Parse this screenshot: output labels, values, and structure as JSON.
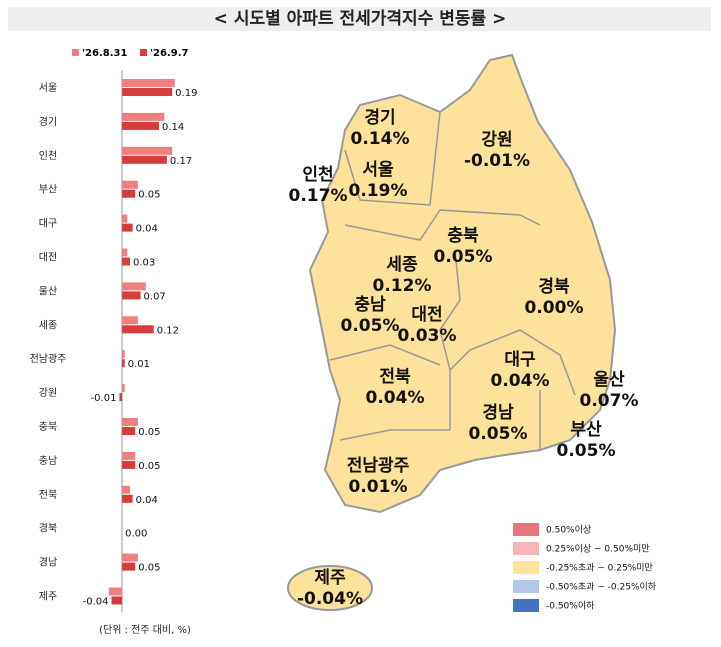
{
  "chart_data": {
    "type": "bar",
    "orientation": "horizontal",
    "title": "< 시도별 아파트 전세가격지수 변동률 >",
    "note": "(단위 : 전주 대비, %)",
    "categories": [
      "서울",
      "경기",
      "인천",
      "부산",
      "대구",
      "대전",
      "울산",
      "세종",
      "전남광주",
      "강원",
      "충북",
      "충남",
      "전북",
      "경북",
      "경남",
      "제주"
    ],
    "xlim": [
      -0.08,
      0.25
    ],
    "series": [
      {
        "name": "'26.8.31",
        "color": "#f08080",
        "values": [
          0.2,
          0.16,
          0.19,
          0.06,
          0.02,
          0.02,
          0.09,
          0.06,
          0.01,
          0.01,
          0.06,
          0.05,
          0.03,
          0,
          0.06,
          -0.05
        ]
      },
      {
        "name": "'26.9.7",
        "color": "#d63c3c",
        "values": [
          0.19,
          0.14,
          0.17,
          0.05,
          0.04,
          0.03,
          0.07,
          0.12,
          0.01,
          -0.01,
          0.05,
          0.05,
          0.04,
          0,
          0.05,
          -0.04
        ],
        "value_labels": [
          "0.19",
          "0.14",
          "0.17",
          "0.05",
          "0.04",
          "0.03",
          "0.07",
          "0.12",
          "0.01",
          "-0.01",
          "0.05",
          "0.05",
          "0.04",
          "0.00",
          "0.05",
          "-0.04"
        ]
      }
    ]
  },
  "map": {
    "regions": [
      {
        "name": "경기",
        "label": "0.14%"
      },
      {
        "name": "인천",
        "label": "0.17%"
      },
      {
        "name": "서울",
        "label": "0.19%"
      },
      {
        "name": "강원",
        "label": "-0.01%"
      },
      {
        "name": "충북",
        "label": "0.05%"
      },
      {
        "name": "세종",
        "label": "0.12%"
      },
      {
        "name": "충남",
        "label": "0.05%"
      },
      {
        "name": "대전",
        "label": "0.03%"
      },
      {
        "name": "경북",
        "label": "0.00%"
      },
      {
        "name": "대구",
        "label": "0.04%"
      },
      {
        "name": "울산",
        "label": "0.07%"
      },
      {
        "name": "전북",
        "label": "0.04%"
      },
      {
        "name": "경남",
        "label": "0.05%"
      },
      {
        "name": "부산",
        "label": "0.05%"
      },
      {
        "name": "전남광주",
        "label": "0.01%"
      },
      {
        "name": "제주",
        "label": "-0.04%"
      }
    ],
    "legend": [
      {
        "label": "0.50%이상",
        "color": "#e8737a"
      },
      {
        "label": "0.25%이상 ~ 0.50%미만",
        "color": "#f7b5b8"
      },
      {
        "label": "-0.25%초과 ~ 0.25%미만",
        "color": "#fce29a"
      },
      {
        "label": "-0.50%초과 ~ -0.25%이하",
        "color": "#b4c7e7"
      },
      {
        "label": "-0.50%이하",
        "color": "#4472c4"
      }
    ]
  }
}
